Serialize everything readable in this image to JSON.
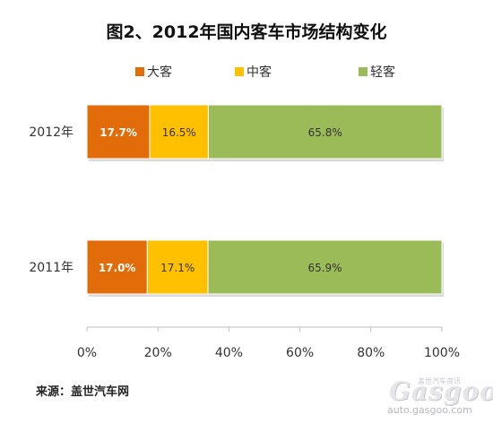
{
  "chart_data": {
    "type": "bar",
    "orientation": "horizontal",
    "stacked": "percent",
    "title": "图2、2012年国内客车市场结构变化",
    "categories": [
      "2012年",
      "2011年"
    ],
    "series": [
      {
        "name": "大客",
        "color": "#E36C0A",
        "label_color": "#ffffff",
        "values": [
          17.7,
          17.0
        ]
      },
      {
        "name": "中客",
        "color": "#FFC000",
        "label_color": "#333333",
        "values": [
          16.5,
          17.1
        ]
      },
      {
        "name": "轻客",
        "color": "#9BBB59",
        "label_color": "#333333",
        "values": [
          65.8,
          65.9
        ]
      }
    ],
    "data_labels": [
      [
        "17.7%",
        "16.5%",
        "65.8%"
      ],
      [
        "17.0%",
        "17.1%",
        "65.9%"
      ]
    ],
    "xlim": [
      0,
      100
    ],
    "x_ticks": [
      0,
      20,
      40,
      60,
      80,
      100
    ],
    "x_tick_labels": [
      "0%",
      "20%",
      "40%",
      "60%",
      "80%",
      "100%"
    ],
    "legend_position": "top",
    "grid": false
  },
  "source": "来源：盖世汽车网",
  "watermark": {
    "logo": "Gasgoo",
    "top": "盖世汽车资讯",
    "url": "auto.gasgoo.com"
  }
}
